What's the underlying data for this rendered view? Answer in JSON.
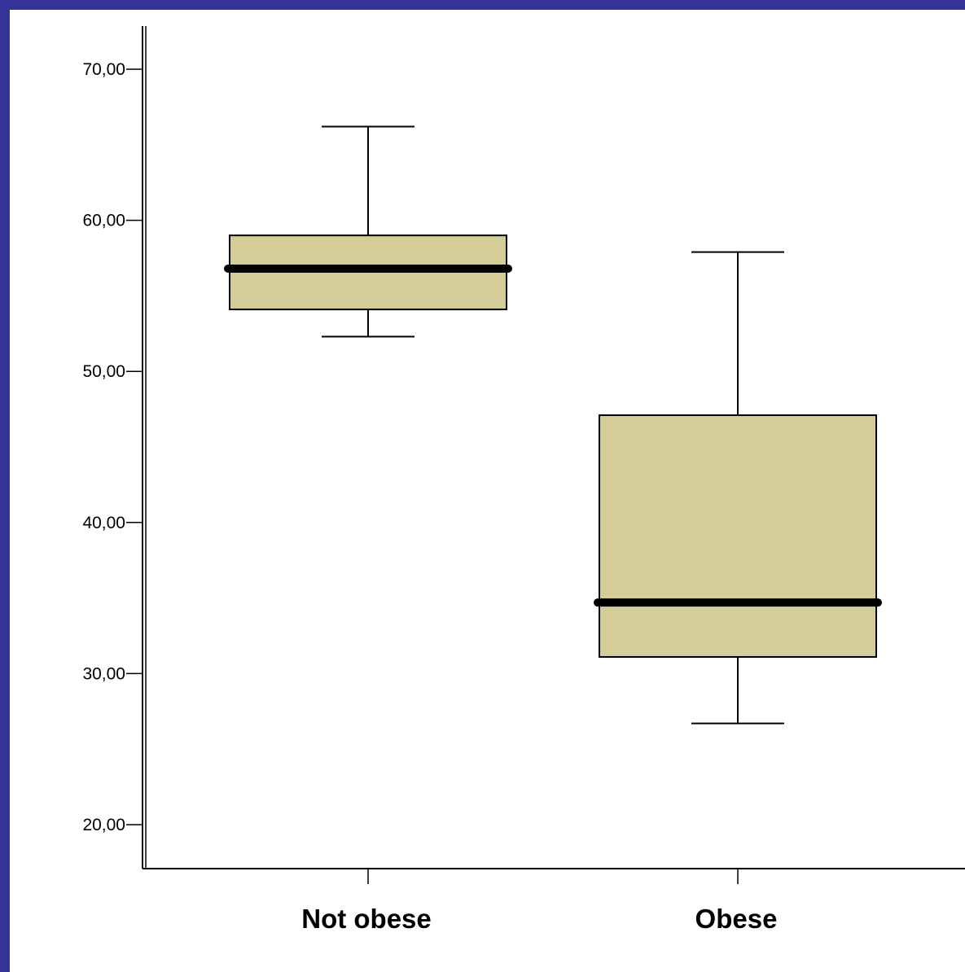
{
  "chart_data": {
    "type": "boxplot",
    "title": "",
    "xlabel": "",
    "ylabel": "",
    "ylim": [
      17,
      73
    ],
    "y_ticks": [
      20,
      30,
      40,
      50,
      60,
      70
    ],
    "y_tick_labels": [
      "20,00",
      "30,00",
      "40,00",
      "50,00",
      "60,00",
      "70,00"
    ],
    "grid": false,
    "legend": "none",
    "categories": [
      "Not obese",
      "Obese"
    ],
    "boxes": [
      {
        "category": "Not obese",
        "whisker_low": 52.3,
        "q1": 54.1,
        "median": 56.8,
        "q3": 59.0,
        "whisker_high": 66.2
      },
      {
        "category": "Obese",
        "whisker_low": 26.7,
        "q1": 31.1,
        "median": 34.7,
        "q3": 47.1,
        "whisker_high": 57.9
      }
    ],
    "colors": {
      "box_fill": "#d4cd98",
      "stroke": "#000000",
      "border": "#333399",
      "background": "#ffffff"
    }
  }
}
